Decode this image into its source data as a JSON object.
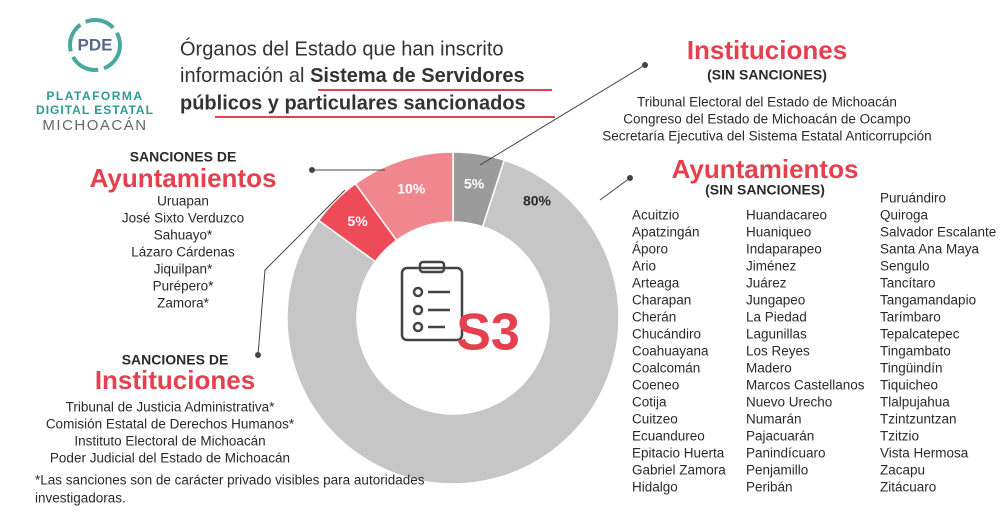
{
  "header": {
    "logo_text": "PDE",
    "logo_lines": [
      "PLATAFORMA",
      "DIGITAL ESTATAL",
      "MICHOACÁN"
    ],
    "title_lines": [
      "Órganos del Estado que han inscrito",
      "información al ",
      "Sistema de Servidores",
      "públicos y particulares sancionados"
    ]
  },
  "chart_data": {
    "type": "pie",
    "donut": true,
    "values": [
      5,
      80,
      5,
      10
    ],
    "value_labels": [
      "5%",
      "80%",
      "5%",
      "10%"
    ],
    "colors": [
      "#9b9b9b",
      "#c6c6c6",
      "#ee4b58",
      "#f0878e"
    ],
    "center_text": "S3"
  },
  "groups": [
    {
      "heading": [
        "Instituciones",
        "(SIN SANCIONES)"
      ],
      "items": [
        "Tribunal Electoral del Estado de Michoacán",
        "Congreso del Estado de Michoacán de Ocampo",
        "Secretaría Ejecutiva del Sistema Estatal Anticorrupción"
      ]
    },
    {
      "heading": [
        "Ayuntamientos",
        "(SIN SANCIONES)"
      ],
      "columns": [
        [
          "Acuitzio",
          "Apatzingán",
          "Áporo",
          "Ario",
          "Arteaga",
          "Charapan",
          "Cherán",
          "Chucándiro",
          "Coahuayana",
          "Coalcomán",
          "Coeneo",
          "Cotija",
          "Cuitzeo",
          "Ecuandureo",
          "Epitacio Huerta",
          "Gabriel Zamora",
          "Hidalgo"
        ],
        [
          "Huandacareo",
          "Huaniqueo",
          "Indaparapeo",
          "Jiménez",
          "Juárez",
          "Jungapeo",
          "La Piedad",
          "Lagunillas",
          "Los Reyes",
          "Madero",
          "Marcos Castellanos",
          "Nuevo Urecho",
          "Numarán",
          "Pajacuarán",
          "Panindícuaro",
          "Penjamillo",
          "Peribán"
        ],
        [
          "Puruándiro",
          "Quiroga",
          "Salvador Escalante",
          "Santa Ana Maya",
          "Sengulo",
          "Tancítaro",
          "Tangamandapio",
          "Tarímbaro",
          "Tepalcatepec",
          "Tingambato",
          "Tingüindín",
          "Tiquicheo",
          "Tlalpujahua",
          "Tzintzuntzan",
          "Tzitzio",
          "Vista Hermosa",
          "Zacapu",
          "Zitácuaro"
        ]
      ]
    },
    {
      "heading": [
        "SANCIONES DE",
        "Ayuntamientos"
      ],
      "items": [
        "Uruapan",
        "José Sixto Verduzco",
        "Sahuayo*",
        "Lázaro Cárdenas",
        "Jiquilpan*",
        "Purépero*",
        "Zamora*"
      ]
    },
    {
      "heading": [
        "SANCIONES DE",
        "Instituciones"
      ],
      "items": [
        "Tribunal de Justicia Administrativa*",
        "Comisión Estatal de Derechos Humanos*",
        "Instituto Electoral de Michoacán",
        "Poder Judicial del Estado de Michoacán"
      ]
    }
  ],
  "footnote": [
    "*Las sanciones son de carácter privado visibles para autoridades",
    "investigadoras."
  ]
}
